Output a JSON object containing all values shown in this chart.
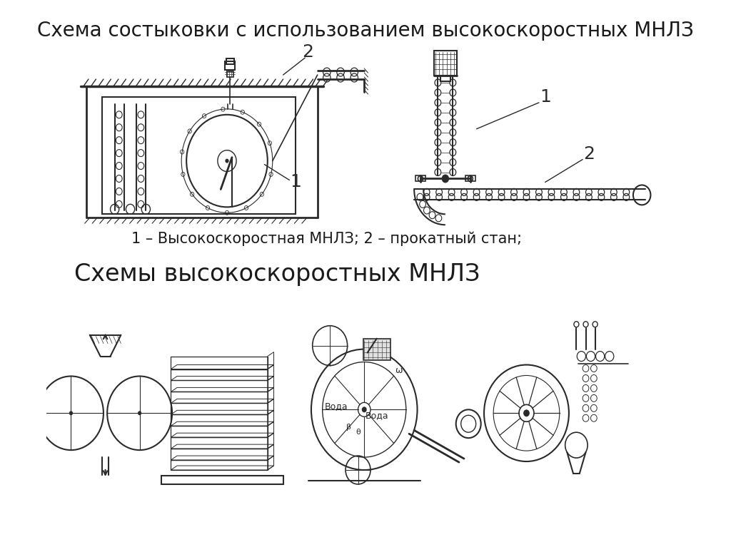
{
  "title1": "Схема состыковки с использованием высокоскоростных МНЛЗ",
  "title2": "Схемы высокоскоростных МНЛЗ",
  "caption": "1 – Высокоскоростная МНЛЗ; 2 – прокатный стан;",
  "bg_color": "#ffffff",
  "text_color": "#1a1a1a",
  "title_fontsize": 20,
  "caption_fontsize": 15,
  "title2_fontsize": 24,
  "line_color": "#2a2a2a",
  "fig_width": 10.24,
  "fig_height": 7.67
}
